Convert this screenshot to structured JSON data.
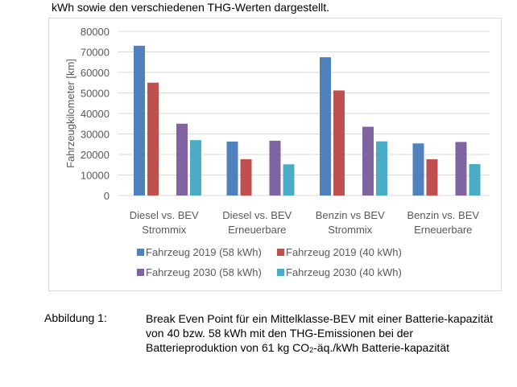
{
  "document": {
    "top_text": "kWh sowie den verschiedenen THG-Werten dargestellt.",
    "caption_label": "Abbildung 1:",
    "caption_text_a": "Break Even Point für ein Mittelklasse-BEV mit einer Batterie-kapazität von 40 bzw. 58 kWh mit den THG-Emissionen bei der Batterieproduktion von 61 kg CO",
    "caption_sub": "2",
    "caption_text_b": "-äq./kWh Batterie-kapazität"
  },
  "chart_data": {
    "type": "bar",
    "title": "",
    "xlabel": "",
    "ylabel": "Fahrzeugkilometer [km]",
    "ylim": [
      0,
      80000
    ],
    "yticks": [
      0,
      10000,
      20000,
      30000,
      40000,
      50000,
      60000,
      70000,
      80000
    ],
    "grid": true,
    "legend_placement": "bottom",
    "categories": [
      [
        "Diesel vs. BEV",
        "Strommix"
      ],
      [
        "Diesel vs. BEV",
        "Erneuerbare"
      ],
      [
        "Benzin vs BEV",
        "Strommix"
      ],
      [
        "Benzin vs. BEV",
        "Erneuerbare"
      ]
    ],
    "series": [
      {
        "name": "Fahrzeug 2019 (58 kWh)",
        "color": "#4f81bd",
        "values": [
          73000,
          26300,
          67400,
          25400
        ]
      },
      {
        "name": "Fahrzeug 2019 (40 kWh)",
        "color": "#c0504d",
        "values": [
          55000,
          17700,
          51200,
          17700
        ]
      },
      {
        "name": "Fahrzeug 2030 (58 kWh)",
        "color": "#8064a2",
        "values": [
          35000,
          26700,
          33500,
          26100
        ]
      },
      {
        "name": "Fahrzeug 2030 (40 kWh)",
        "color": "#4bacc6",
        "values": [
          27000,
          15200,
          26400,
          15300
        ]
      }
    ]
  }
}
